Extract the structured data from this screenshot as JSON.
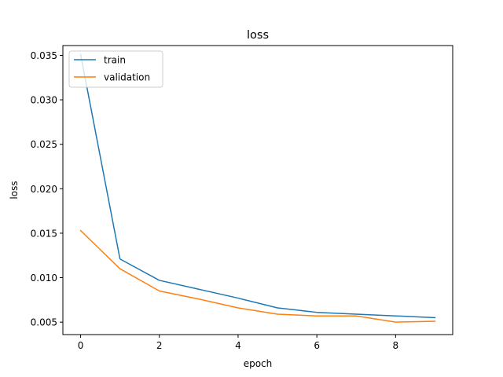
{
  "chart_data": {
    "type": "line",
    "title": "loss",
    "xlabel": "epoch",
    "ylabel": "loss",
    "x": [
      0,
      1,
      2,
      3,
      4,
      5,
      6,
      7,
      8,
      9
    ],
    "xlim": [
      -0.45,
      9.45
    ],
    "ylim": [
      0.0036,
      0.0361
    ],
    "xticks": [
      0,
      2,
      4,
      6,
      8
    ],
    "xtick_labels": [
      "0",
      "2",
      "4",
      "6",
      "8"
    ],
    "yticks": [
      0.005,
      0.01,
      0.015,
      0.02,
      0.025,
      0.03,
      0.035
    ],
    "ytick_labels": [
      "0.005",
      "0.010",
      "0.015",
      "0.020",
      "0.025",
      "0.030",
      "0.035"
    ],
    "grid": false,
    "legend_position": "top-left",
    "series": [
      {
        "name": "train",
        "color": "#1f77b4",
        "values": [
          0.0351,
          0.0121,
          0.0097,
          0.0087,
          0.0077,
          0.0066,
          0.0061,
          0.0059,
          0.0057,
          0.0055
        ]
      },
      {
        "name": "validation",
        "color": "#ff7f0e",
        "values": [
          0.0153,
          0.011,
          0.0085,
          0.0076,
          0.0066,
          0.0059,
          0.0057,
          0.0057,
          0.005,
          0.0051
        ]
      }
    ]
  }
}
